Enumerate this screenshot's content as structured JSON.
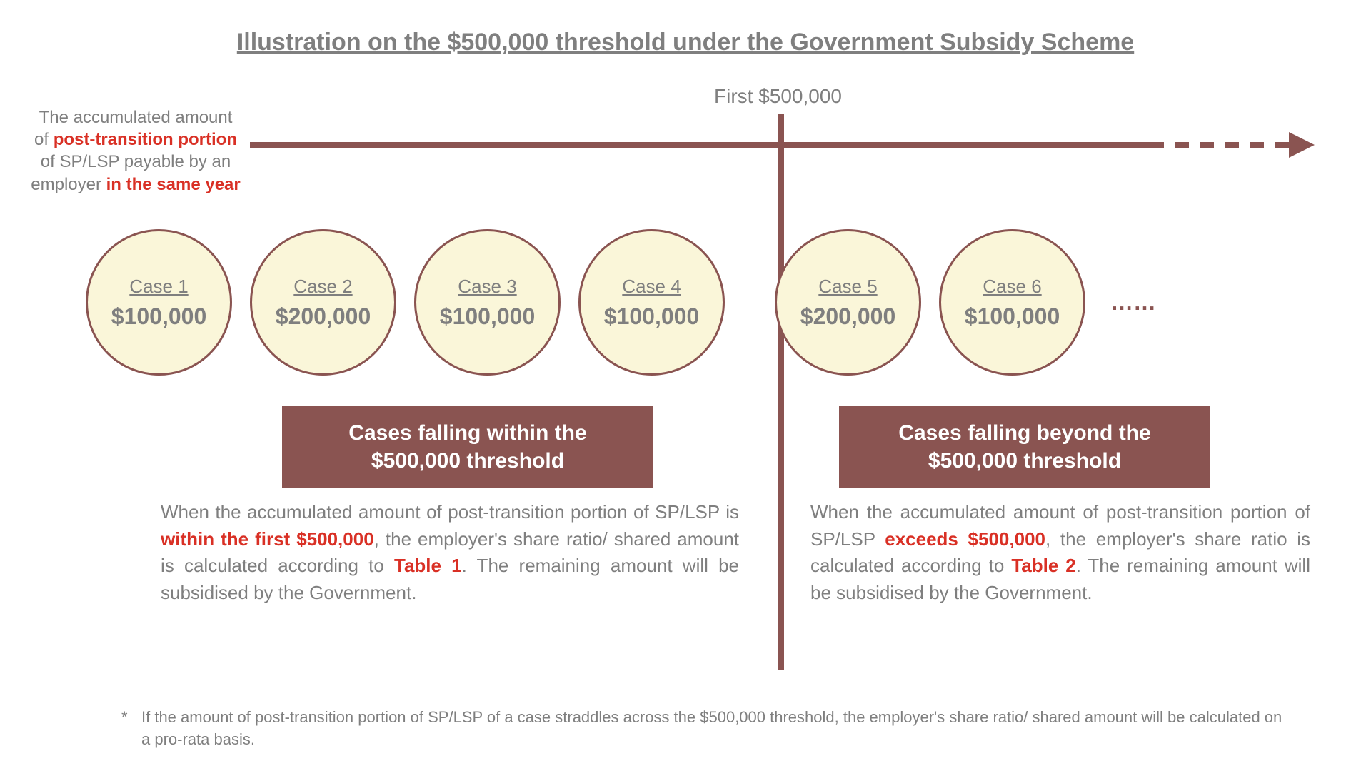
{
  "title": "Illustration on the $500,000 threshold under the Government Subsidy Scheme",
  "threshold_label": "First $500,000",
  "left_label": {
    "l1": "The accumulated amount",
    "l2a": "of ",
    "l2b": "post-transition portion",
    "l3": "of SP/LSP payable by an",
    "l4a": "employer ",
    "l4b": "in the same year"
  },
  "circles": [
    {
      "label": "Case 1",
      "amount": "$100,000",
      "gap": false
    },
    {
      "label": "Case 2",
      "amount": "$200,000",
      "gap": false
    },
    {
      "label": "Case 3",
      "amount": "$100,000",
      "gap": false
    },
    {
      "label": "Case 4",
      "amount": "$100,000",
      "gap": true
    },
    {
      "label": "Case 5",
      "amount": "$200,000",
      "gap": false
    },
    {
      "label": "Case 6",
      "amount": "$100,000",
      "gap": false
    }
  ],
  "ellipsis": "……",
  "box_left": "Cases falling within the $500,000 threshold",
  "box_right": "Cases falling beyond the $500,000 threshold",
  "desc_left": {
    "t1": "When the accumulated amount of post-transition portion of SP/LSP is ",
    "h1": "within the first $500,000",
    "t2": ", the employer's share ratio/ shared amount is calculated according to ",
    "h2": "Table 1",
    "t3": ". The remaining amount will be subsidised by the Government."
  },
  "desc_right": {
    "t1": "When the accumulated amount of post-transition portion of SP/LSP ",
    "h1": "exceeds $500,000",
    "t2": ", the employer's share ratio is calculated according to ",
    "h2": "Table 2",
    "t3": ". The remaining amount will be subsidised by the Government."
  },
  "footnote": {
    "star": "*",
    "text": "If the amount of post-transition portion of SP/LSP of a case straddles across the $500,000 threshold, the employer's share ratio/ shared amount will be calculated on a pro-rata basis."
  },
  "colors": {
    "brown": "#8a5451",
    "cream": "#faf6d9",
    "gray": "#7f7f7f",
    "red": "#d93025",
    "white": "#ffffff"
  }
}
